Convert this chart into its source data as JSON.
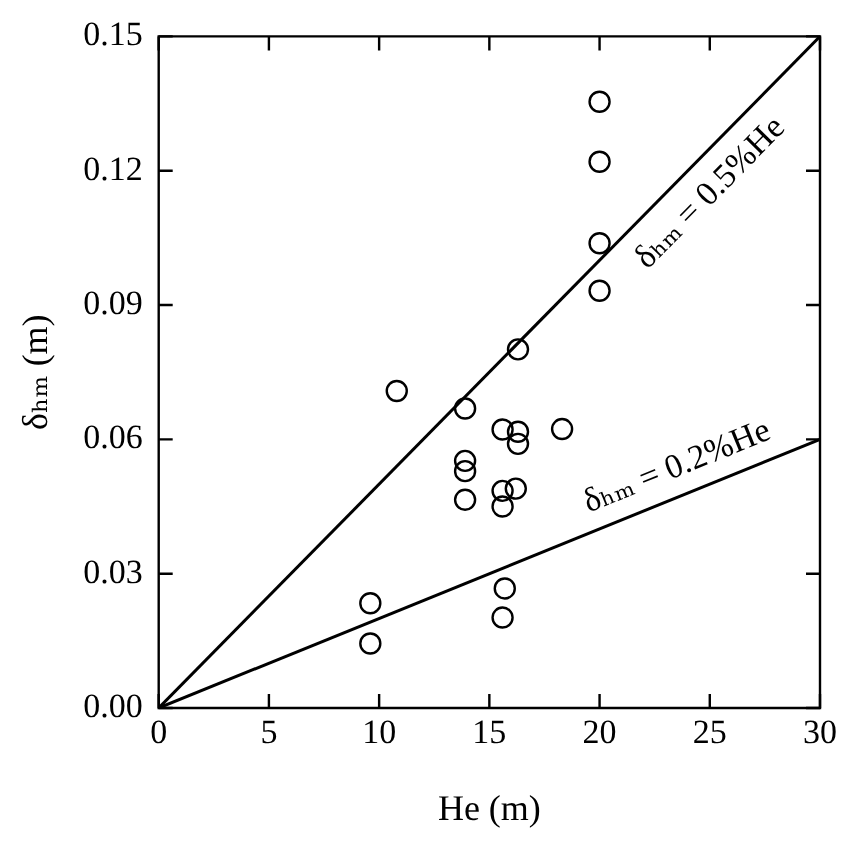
{
  "chart_data": {
    "type": "scatter",
    "xlabel": "He (m)",
    "ylabel": "δₕₘ (m)",
    "xlim": [
      0,
      30
    ],
    "ylim": [
      0,
      0.15
    ],
    "xticks": [
      0,
      5,
      10,
      15,
      20,
      25,
      30
    ],
    "yticks": [
      {
        "value": 0,
        "label": "0.00"
      },
      {
        "value": 0.03,
        "label": "0.03"
      },
      {
        "value": 0.06,
        "label": "0.06"
      },
      {
        "value": 0.09,
        "label": "0.09"
      },
      {
        "value": 0.12,
        "label": "0.12"
      },
      {
        "value": 0.15,
        "label": "0.15"
      }
    ],
    "grid": false,
    "legend": false,
    "series": [
      {
        "type": "scatter",
        "color": "#000000",
        "marker": "circle",
        "x": [
          9.6,
          9.6,
          10.8,
          13.9,
          13.9,
          13.9,
          13.9,
          15.6,
          15.6,
          15.6,
          16.3,
          16.3,
          16.3,
          16.2,
          18.3,
          15.7,
          15.6,
          20,
          20,
          20,
          20
        ],
        "values": [
          0.0234,
          0.0144,
          0.0708,
          0.0669,
          0.0552,
          0.0529,
          0.0465,
          0.0622,
          0.0485,
          0.045,
          0.0801,
          0.0617,
          0.059,
          0.049,
          0.0623,
          0.0267,
          0.0202,
          0.1354,
          0.122,
          0.1038,
          0.0932
        ]
      },
      {
        "type": "line",
        "color": "#000000",
        "x": [
          0,
          30
        ],
        "values": [
          0,
          0.15
        ]
      },
      {
        "type": "line",
        "color": "#000000",
        "x": [
          0,
          30
        ],
        "values": [
          0,
          0.06
        ]
      }
    ],
    "annotations": [
      "δₕₘ = 0.5%He",
      "δₕₘ = 0.2%He"
    ]
  }
}
